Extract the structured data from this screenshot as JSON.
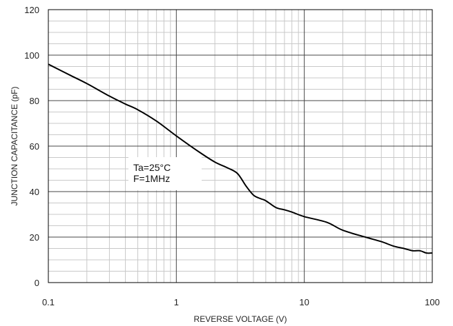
{
  "chart_data": {
    "type": "line",
    "title": "",
    "xlabel": "REVERSE VOLTAGE (V)",
    "ylabel": "JUNCTION CAPACITANCE (pF)",
    "x_scale": "log",
    "xlim": [
      0.1,
      100
    ],
    "ylim": [
      0,
      120
    ],
    "x_ticks": [
      0.1,
      1,
      10,
      100
    ],
    "x_tick_labels": [
      "0.1",
      "1",
      "10",
      "100"
    ],
    "y_ticks": [
      0,
      20,
      40,
      60,
      80,
      100,
      120
    ],
    "y_tick_labels": [
      "0",
      "20",
      "40",
      "60",
      "80",
      "100",
      "120"
    ],
    "grid": true,
    "legend": "none",
    "annotations": [
      "Ta=25°C",
      "F=1MHz"
    ],
    "series": [
      {
        "color": "#000000",
        "x": [
          0.1,
          0.15,
          0.2,
          0.3,
          0.4,
          0.5,
          0.7,
          1,
          1.5,
          2,
          2.5,
          3,
          3.5,
          4,
          4.5,
          5,
          6,
          7,
          8,
          10,
          15,
          20,
          30,
          40,
          50,
          60,
          70,
          80,
          90,
          100
        ],
        "y": [
          96,
          91,
          87.5,
          82,
          78.5,
          76,
          71,
          64.5,
          57.5,
          53,
          50.5,
          48,
          42.5,
          38.5,
          37,
          36,
          33,
          32,
          31,
          29,
          26.5,
          23,
          20,
          18,
          16,
          15,
          14,
          14,
          13,
          13
        ]
      }
    ]
  }
}
